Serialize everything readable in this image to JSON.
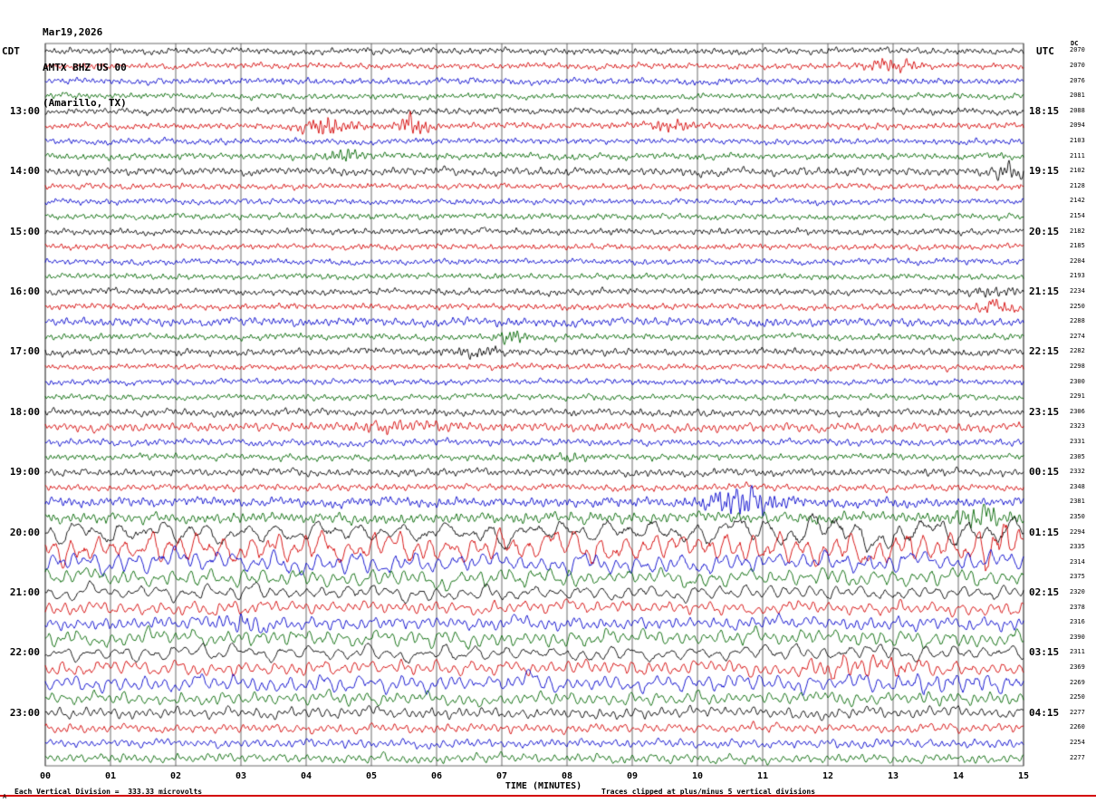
{
  "title": {
    "date": "Mar19,2026",
    "station": "AMTX BHZ US 00",
    "location": "(Amarillo, TX)"
  },
  "axes": {
    "left_header": "CDT",
    "right_header": "UTC",
    "dc_header": "DC",
    "x_label": "TIME (MINUTES)",
    "x_ticks": [
      "00",
      "01",
      "02",
      "03",
      "04",
      "05",
      "06",
      "07",
      "08",
      "09",
      "10",
      "11",
      "12",
      "13",
      "14",
      "15"
    ]
  },
  "footer": {
    "left": "Each Vertical Division =  333.33 microvolts",
    "right": "Traces clipped at plus/minus 5 vertical divisions",
    "corner": "A"
  },
  "colors": {
    "black": "#000000",
    "red": "#d40000",
    "blue": "#0000cc",
    "green": "#006600",
    "grid": "#444444",
    "footer_line": "#d40000"
  },
  "chart_data": {
    "type": "line",
    "x_range_minutes": [
      0,
      15
    ],
    "minutes_per_row": 15,
    "rows_per_hour": 4,
    "rows": [
      {
        "color": "black",
        "dc": 2070,
        "amp": 1.3,
        "per": 8
      },
      {
        "color": "red",
        "dc": 2070,
        "amp": 1.2,
        "per": 8,
        "events": [
          {
            "t": 13.0,
            "a": 3.0,
            "w": 0.25
          }
        ]
      },
      {
        "color": "blue",
        "dc": 2076,
        "amp": 1.3,
        "per": 8
      },
      {
        "color": "green",
        "dc": 2081,
        "amp": 1.2,
        "per": 8
      },
      {
        "color": "black",
        "dc": 2088,
        "amp": 1.3,
        "per": 8,
        "left": "13:00",
        "right": "18:15"
      },
      {
        "color": "red",
        "dc": 2094,
        "amp": 1.3,
        "per": 8,
        "events": [
          {
            "t": 4.3,
            "a": 3.5,
            "w": 0.3
          },
          {
            "t": 5.65,
            "a": 5.0,
            "w": 0.15
          },
          {
            "t": 9.6,
            "a": 2.5,
            "w": 0.2
          }
        ]
      },
      {
        "color": "blue",
        "dc": 2103,
        "amp": 1.2,
        "per": 8
      },
      {
        "color": "green",
        "dc": 2111,
        "amp": 1.3,
        "per": 8,
        "events": [
          {
            "t": 4.6,
            "a": 3.0,
            "w": 0.2
          }
        ]
      },
      {
        "color": "black",
        "dc": 2102,
        "amp": 1.6,
        "per": 9,
        "left": "14:00",
        "right": "19:15",
        "events": [
          {
            "t": 14.8,
            "a": 2.6,
            "w": 0.2
          }
        ]
      },
      {
        "color": "red",
        "dc": 2128,
        "amp": 1.2,
        "per": 8
      },
      {
        "color": "blue",
        "dc": 2142,
        "amp": 1.2,
        "per": 8
      },
      {
        "color": "green",
        "dc": 2154,
        "amp": 1.2,
        "per": 8
      },
      {
        "color": "black",
        "dc": 2182,
        "amp": 1.3,
        "per": 8,
        "left": "15:00",
        "right": "20:15"
      },
      {
        "color": "red",
        "dc": 2185,
        "amp": 1.2,
        "per": 8
      },
      {
        "color": "blue",
        "dc": 2204,
        "amp": 1.2,
        "per": 8
      },
      {
        "color": "green",
        "dc": 2193,
        "amp": 1.2,
        "per": 8
      },
      {
        "color": "black",
        "dc": 2234,
        "amp": 1.3,
        "per": 8,
        "left": "16:00",
        "right": "21:15",
        "events": [
          {
            "t": 14.6,
            "a": 2.0,
            "w": 0.3
          }
        ]
      },
      {
        "color": "red",
        "dc": 2250,
        "amp": 1.3,
        "per": 8,
        "events": [
          {
            "t": 14.6,
            "a": 2.4,
            "w": 0.25
          }
        ]
      },
      {
        "color": "blue",
        "dc": 2288,
        "amp": 1.7,
        "per": 9
      },
      {
        "color": "green",
        "dc": 2274,
        "amp": 1.3,
        "per": 8,
        "events": [
          {
            "t": 7.15,
            "a": 3.0,
            "w": 0.15
          }
        ]
      },
      {
        "color": "black",
        "dc": 2282,
        "amp": 1.4,
        "per": 8,
        "left": "17:00",
        "right": "22:15",
        "events": [
          {
            "t": 6.6,
            "a": 1.8,
            "w": 0.3
          }
        ]
      },
      {
        "color": "red",
        "dc": 2298,
        "amp": 1.2,
        "per": 8
      },
      {
        "color": "blue",
        "dc": 2300,
        "amp": 1.2,
        "per": 8
      },
      {
        "color": "green",
        "dc": 2291,
        "amp": 1.2,
        "per": 8
      },
      {
        "color": "black",
        "dc": 2306,
        "amp": 1.5,
        "per": 9,
        "left": "18:00",
        "right": "23:15"
      },
      {
        "color": "red",
        "dc": 2323,
        "amp": 1.8,
        "per": 10,
        "events": [
          {
            "t": 5.4,
            "a": 1.8,
            "w": 0.5
          }
        ]
      },
      {
        "color": "blue",
        "dc": 2331,
        "amp": 1.4,
        "per": 9
      },
      {
        "color": "green",
        "dc": 2305,
        "amp": 1.3,
        "per": 8,
        "events": [
          {
            "t": 8.0,
            "a": 1.8,
            "w": 0.3
          }
        ]
      },
      {
        "color": "black",
        "dc": 2332,
        "amp": 1.5,
        "per": 9,
        "left": "19:00",
        "right": "00:15"
      },
      {
        "color": "red",
        "dc": 2348,
        "amp": 1.4,
        "per": 9
      },
      {
        "color": "blue",
        "dc": 2381,
        "amp": 1.9,
        "per": 9,
        "events": [
          {
            "t": 10.7,
            "a": 3.5,
            "w": 0.4
          }
        ]
      },
      {
        "color": "green",
        "dc": 2350,
        "amp": 2.2,
        "per": 10,
        "events": [
          {
            "t": 14.3,
            "a": 2.5,
            "w": 0.3
          }
        ]
      },
      {
        "color": "black",
        "dc": 2294,
        "amp": 4.5,
        "per": 45,
        "left": "20:00",
        "right": "01:15",
        "events": [
          {
            "t": 12.6,
            "a": 1.5,
            "w": 1.2
          }
        ]
      },
      {
        "color": "red",
        "dc": 2335,
        "amp": 6.0,
        "per": 28,
        "events": [
          {
            "t": 14.6,
            "a": 1.8,
            "w": 0.3
          }
        ]
      },
      {
        "color": "blue",
        "dc": 2314,
        "amp": 4.0,
        "per": 22
      },
      {
        "color": "green",
        "dc": 2375,
        "amp": 3.5,
        "per": 20
      },
      {
        "color": "black",
        "dc": 2320,
        "amp": 3.0,
        "per": 26,
        "left": "21:00",
        "right": "02:15"
      },
      {
        "color": "red",
        "dc": 2378,
        "amp": 2.6,
        "per": 16
      },
      {
        "color": "blue",
        "dc": 2316,
        "amp": 2.6,
        "per": 14,
        "events": [
          {
            "t": 3.05,
            "a": 2.2,
            "w": 0.2
          }
        ]
      },
      {
        "color": "green",
        "dc": 2390,
        "amp": 3.2,
        "per": 18
      },
      {
        "color": "black",
        "dc": 2311,
        "amp": 3.0,
        "per": 30,
        "left": "22:00",
        "right": "03:15"
      },
      {
        "color": "red",
        "dc": 2369,
        "amp": 3.0,
        "per": 18,
        "events": [
          {
            "t": 12.5,
            "a": 1.9,
            "w": 0.6
          }
        ]
      },
      {
        "color": "blue",
        "dc": 2269,
        "amp": 3.4,
        "per": 20,
        "events": [
          {
            "t": 13.8,
            "a": 1.6,
            "w": 0.5
          }
        ]
      },
      {
        "color": "green",
        "dc": 2250,
        "amp": 2.6,
        "per": 16
      },
      {
        "color": "black",
        "dc": 2277,
        "amp": 2.2,
        "per": 14,
        "left": "23:00",
        "right": "04:15"
      },
      {
        "color": "red",
        "dc": 2260,
        "amp": 1.8,
        "per": 12
      },
      {
        "color": "blue",
        "dc": 2254,
        "amp": 1.8,
        "per": 12
      },
      {
        "color": "green",
        "dc": 2277,
        "amp": 1.8,
        "per": 12
      }
    ]
  }
}
